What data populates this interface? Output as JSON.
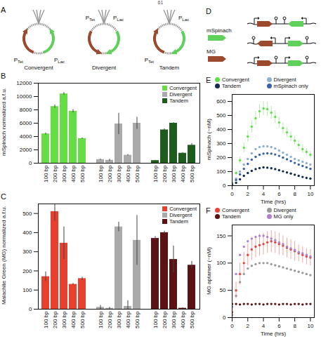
{
  "page_number": "61",
  "diagrams": {
    "A": {
      "panel_label": "A",
      "plasmids": [
        {
          "label": "Convergent",
          "promoters": [
            {
              "base": "P",
              "sub": "Tet"
            },
            {
              "base": "P",
              "sub": "Lac"
            }
          ]
        },
        {
          "label": "Divergent",
          "promoters": [
            {
              "base": "P",
              "sub": "Tet"
            },
            {
              "base": "P",
              "sub": "Lac"
            }
          ]
        },
        {
          "label": "Tandem",
          "promoters": [
            {
              "base": "P",
              "sub": "Tet"
            },
            {
              "base": "P",
              "sub": "Lac"
            }
          ]
        }
      ]
    },
    "D": {
      "panel_label": "D",
      "key": [
        {
          "label": "mSpinach",
          "color": "#5fd05a"
        },
        {
          "label": "MG",
          "color": "#9b4a2e"
        }
      ]
    }
  },
  "chart_data": [
    {
      "panel_label": "B",
      "type": "bar",
      "grid": false,
      "legend": "top-right",
      "y_label": "mSpinach normalized a.f.u.",
      "categories": [
        "100 bp",
        "200 bp",
        "300 bp",
        "400 bp",
        "500 bp"
      ],
      "ylim": [
        0,
        12000
      ],
      "yticks": [
        0,
        2000,
        4000,
        6000,
        8000,
        10000,
        12000
      ],
      "series": [
        {
          "name": "Convergent",
          "color": "#66dd44",
          "values": [
            4400,
            8500,
            10400,
            7800,
            3700
          ],
          "errors": [
            150,
            250,
            200,
            250,
            100
          ]
        },
        {
          "name": "Divergent",
          "color": "#aaaaaa",
          "values": [
            550,
            450,
            5900,
            1200,
            6000
          ],
          "errors": [
            80,
            150,
            1600,
            100,
            900
          ]
        },
        {
          "name": "Tandem",
          "color": "#1e5c1e",
          "values": [
            400,
            5000,
            6000,
            1500,
            2700
          ],
          "errors": [
            50,
            150,
            100,
            100,
            250
          ]
        }
      ]
    },
    {
      "panel_label": "C",
      "type": "bar",
      "grid": false,
      "legend": "top-right",
      "y_label": "Malachite Green (MG) normalized a.f.u.",
      "categories": [
        "100 bp",
        "200 bp",
        "300 bp",
        "400 bp",
        "500 bp"
      ],
      "ylim": [
        0,
        550
      ],
      "yticks": [
        0,
        100,
        200,
        300,
        400,
        500
      ],
      "series": [
        {
          "name": "Convergent",
          "color": "#e8402e",
          "values": [
            170,
            510,
            345,
            130,
            160
          ],
          "errors": [
            25,
            50,
            85,
            5,
            8
          ]
        },
        {
          "name": "Divergent",
          "color": "#aaaaaa",
          "values": [
            10,
            5,
            430,
            15,
            360
          ],
          "errors": [
            10,
            5,
            25,
            30,
            130
          ]
        },
        {
          "name": "Tandem",
          "color": "#5c1212",
          "values": [
            370,
            400,
            260,
            5,
            230
          ],
          "errors": [
            10,
            8,
            70,
            3,
            20
          ]
        }
      ]
    },
    {
      "panel_label": "E",
      "type": "scatter",
      "marker": "circle",
      "grid": false,
      "legend": "top",
      "x_label": "Time (hrs)",
      "y_label": "mSpinach (~nM)",
      "x": [
        0,
        0.5,
        1,
        1.5,
        2,
        2.5,
        3,
        3.5,
        4,
        4.5,
        5,
        5.5,
        6,
        6.5,
        7,
        7.5,
        8,
        8.5,
        9,
        9.5,
        10
      ],
      "xlim": [
        0,
        10.5
      ],
      "xticks": [
        0,
        2,
        4,
        6,
        8,
        10
      ],
      "ylim": [
        0,
        650
      ],
      "yticks": [
        0,
        100,
        200,
        300,
        400,
        500,
        600
      ],
      "series": [
        {
          "name": "Convergent",
          "color": "#5ee04a",
          "values": [
            20,
            90,
            180,
            270,
            350,
            420,
            480,
            530,
            550,
            545,
            520,
            490,
            450,
            410,
            380,
            350,
            320,
            290,
            260,
            240,
            220
          ],
          "errors": [
            5,
            15,
            25,
            35,
            40,
            45,
            50,
            50,
            50,
            50,
            45,
            45,
            40,
            40,
            35,
            35,
            30,
            30,
            30,
            25,
            25
          ]
        },
        {
          "name": "Divergent",
          "color": "#8fb0cf",
          "values": [
            10,
            50,
            100,
            150,
            190,
            230,
            260,
            275,
            280,
            280,
            275,
            265,
            250,
            235,
            220,
            205,
            190,
            180,
            170,
            160,
            150
          ]
        },
        {
          "name": "Tandem",
          "color": "#142a4f",
          "values": [
            5,
            20,
            45,
            70,
            90,
            105,
            118,
            125,
            130,
            128,
            124,
            118,
            110,
            102,
            94,
            86,
            78,
            70,
            62,
            55,
            50
          ]
        },
        {
          "name": "mSpinach only",
          "color": "#3a62a8",
          "values": [
            10,
            40,
            80,
            120,
            155,
            185,
            205,
            220,
            228,
            230,
            228,
            222,
            212,
            200,
            188,
            175,
            162,
            150,
            140,
            130,
            120
          ]
        }
      ]
    },
    {
      "panel_label": "F",
      "type": "scatter",
      "marker": "circle",
      "grid": false,
      "legend": "top",
      "x_label": "Time (hrs)",
      "y_label": "MG aptamer (~nM)",
      "x": [
        0,
        0.5,
        1,
        1.5,
        2,
        2.5,
        3,
        3.5,
        4,
        4.5,
        5,
        5.5,
        6,
        6.5,
        7,
        7.5,
        8,
        8.5,
        9,
        9.5,
        10
      ],
      "xlim": [
        0,
        10.5
      ],
      "xticks": [
        0,
        2,
        4,
        6,
        8,
        10
      ],
      "ylim": [
        0,
        170
      ],
      "yticks": [
        0,
        50,
        100,
        150
      ],
      "series": [
        {
          "name": "Convergent",
          "color": "#e8443a",
          "values": [
            10,
            50,
            80,
            100,
            115,
            125,
            130,
            133,
            135,
            138,
            140,
            138,
            135,
            132,
            128,
            125,
            122,
            118,
            115,
            112,
            110
          ],
          "errors": [
            5,
            15,
            20,
            20,
            20,
            20,
            20,
            20,
            20,
            20,
            20,
            20,
            20,
            18,
            18,
            18,
            18,
            15,
            15,
            15,
            15
          ]
        },
        {
          "name": "Divergent",
          "color": "#9a9a9a",
          "values": [
            5,
            40,
            65,
            80,
            90,
            95,
            98,
            100,
            100,
            100,
            98,
            96,
            94,
            92,
            90,
            88,
            86,
            84,
            82,
            80,
            78
          ]
        },
        {
          "name": "Tandem",
          "color": "#5c1212",
          "values": [
            25,
            25,
            24,
            25,
            25,
            24,
            25,
            25,
            24,
            25,
            25,
            25,
            24,
            25,
            25,
            24,
            25,
            25,
            24,
            25,
            25
          ]
        },
        {
          "name": "MG only",
          "color": "#b07fd0",
          "values": [
            20,
            80,
            115,
            130,
            140,
            145,
            148,
            150,
            150,
            148,
            145,
            142,
            138,
            135,
            130,
            127,
            124,
            120,
            118,
            115,
            112
          ]
        }
      ]
    }
  ]
}
